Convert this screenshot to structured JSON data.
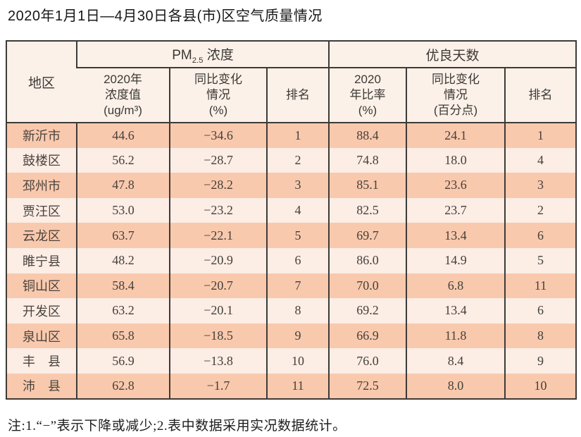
{
  "page": {
    "title": "2020年1月1日—4月30日各县(市)区空气质量情况",
    "note": "注:1.“−”表示下降或减少;2.表中数据采用实况数据统计。"
  },
  "colors": {
    "border": "#3e3a37",
    "row_odd_bg": "#f9c9ad",
    "row_even_bg": "#fcede5",
    "header_bg": "#fbf1e9",
    "text": "#423c37"
  },
  "table": {
    "region_header": "地区",
    "pm25_group": {
      "prefix": "PM",
      "sub": "2.5",
      "suffix": " 浓度"
    },
    "good_days_group": "优良天数",
    "subheaders": [
      "2020年\n浓度值\n(ug/m³)",
      "同比变化\n情况\n(%)",
      "排名",
      "2020\n年比率\n(%)",
      "同比变化\n情况\n(百分点)",
      "排名"
    ],
    "rows": [
      {
        "region": "新沂市",
        "pm25_value": "44.6",
        "pm25_change": "−34.6",
        "pm25_rank": "1",
        "good_ratio": "88.4",
        "good_change": "24.1",
        "good_rank": "1"
      },
      {
        "region": "鼓楼区",
        "pm25_value": "56.2",
        "pm25_change": "−28.7",
        "pm25_rank": "2",
        "good_ratio": "74.8",
        "good_change": "18.0",
        "good_rank": "4"
      },
      {
        "region": "邳州市",
        "pm25_value": "47.8",
        "pm25_change": "−28.2",
        "pm25_rank": "3",
        "good_ratio": "85.1",
        "good_change": "23.6",
        "good_rank": "3"
      },
      {
        "region": "贾汪区",
        "pm25_value": "53.0",
        "pm25_change": "−23.2",
        "pm25_rank": "4",
        "good_ratio": "82.5",
        "good_change": "23.7",
        "good_rank": "2"
      },
      {
        "region": "云龙区",
        "pm25_value": "63.7",
        "pm25_change": "−22.1",
        "pm25_rank": "5",
        "good_ratio": "69.7",
        "good_change": "13.4",
        "good_rank": "6"
      },
      {
        "region": "睢宁县",
        "pm25_value": "48.2",
        "pm25_change": "−20.9",
        "pm25_rank": "6",
        "good_ratio": "86.0",
        "good_change": "14.9",
        "good_rank": "5"
      },
      {
        "region": "铜山区",
        "pm25_value": "58.4",
        "pm25_change": "−20.7",
        "pm25_rank": "7",
        "good_ratio": "70.0",
        "good_change": "6.8",
        "good_rank": "11"
      },
      {
        "region": "开发区",
        "pm25_value": "63.2",
        "pm25_change": "−20.1",
        "pm25_rank": "8",
        "good_ratio": "69.2",
        "good_change": "13.4",
        "good_rank": "6"
      },
      {
        "region": "泉山区",
        "pm25_value": "65.8",
        "pm25_change": "−18.5",
        "pm25_rank": "9",
        "good_ratio": "66.9",
        "good_change": "11.8",
        "good_rank": "8"
      },
      {
        "region": "丰　县",
        "pm25_value": "56.9",
        "pm25_change": "−13.8",
        "pm25_rank": "10",
        "good_ratio": "76.0",
        "good_change": "8.4",
        "good_rank": "9"
      },
      {
        "region": "沛　县",
        "pm25_value": "62.8",
        "pm25_change": "−1.7",
        "pm25_rank": "11",
        "good_ratio": "72.5",
        "good_change": "8.0",
        "good_rank": "10"
      }
    ]
  }
}
